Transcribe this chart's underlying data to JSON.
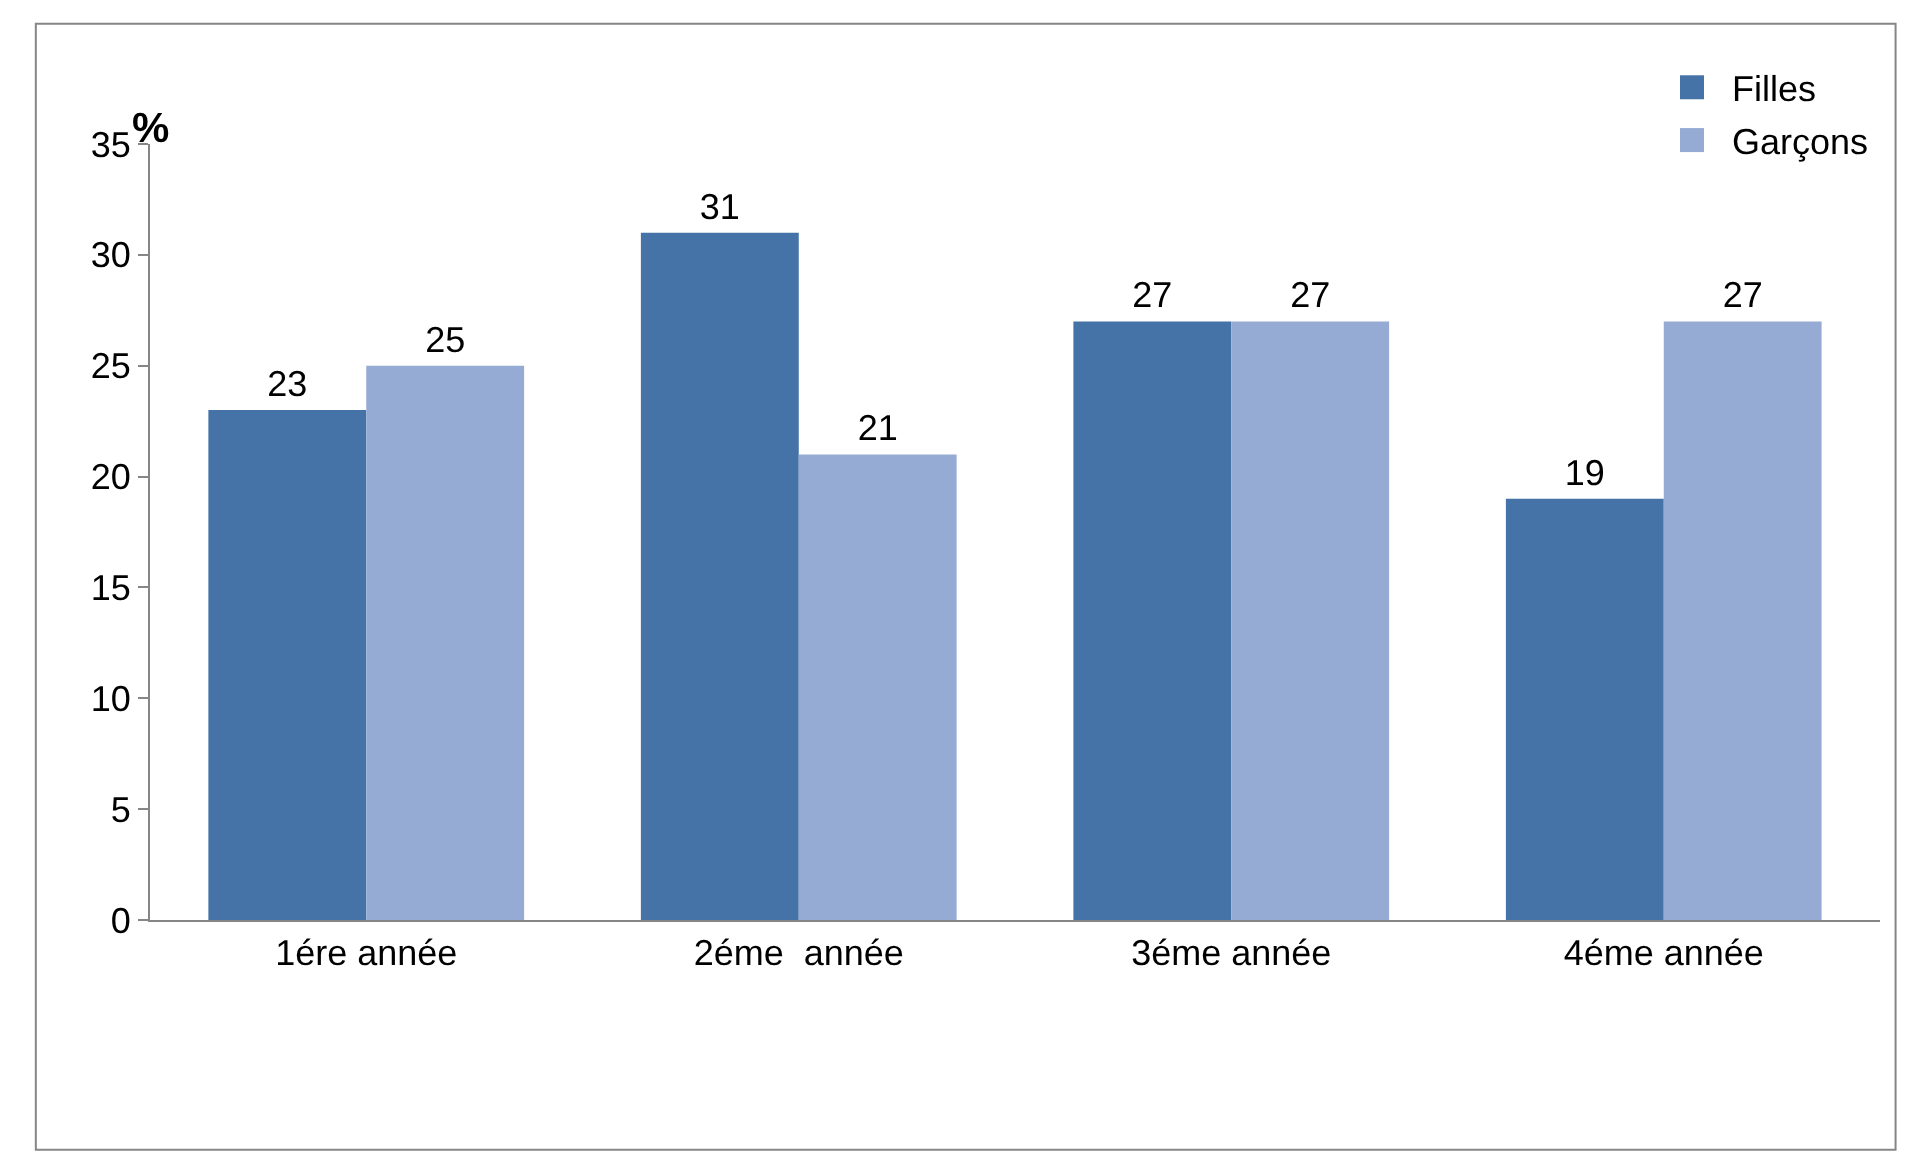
{
  "chart_data": {
    "type": "bar",
    "ylabel": "%",
    "categories": [
      "1ére année",
      "2éme  année",
      "3éme année",
      "4éme année"
    ],
    "series": [
      {
        "name": "Filles",
        "color": "#4572a7",
        "values": [
          23,
          31,
          27,
          19
        ]
      },
      {
        "name": "Garçons",
        "color": "#95abd3",
        "values": [
          25,
          21,
          27,
          27
        ]
      }
    ],
    "ylim": [
      0,
      35
    ],
    "yticks": [
      0,
      5,
      10,
      15,
      20,
      25,
      30,
      35
    ],
    "legend": "top right",
    "data_labels": true
  }
}
